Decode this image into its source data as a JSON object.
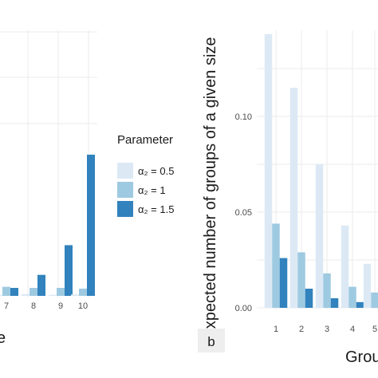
{
  "colors": {
    "series": [
      "#dce9f5",
      "#9ecae1",
      "#3182bd"
    ],
    "grid": "#ebebeb",
    "panel_letter_bg": "#eeeeee"
  },
  "legend": {
    "title": "Parameter",
    "labels": [
      "α₂ = 0.5",
      "α₂ = 1",
      "α₂ = 1.5"
    ]
  },
  "panel_b_label": "b",
  "left_axis_title_fragment": "e",
  "right_x_title_fragment": "Grou",
  "chart_data": [
    {
      "type": "bar",
      "panel": "a",
      "categories": [
        "7",
        "8",
        "9",
        "10"
      ],
      "series": [
        {
          "name": "α₂ = 0.5",
          "values": [
            0.003,
            0.005,
            0.003,
            0.004
          ]
        },
        {
          "name": "α₂ = 1",
          "values": [
            0.025,
            0.022,
            0.022,
            0.02
          ]
        },
        {
          "name": "α₂ = 1.5",
          "values": [
            0.022,
            0.058,
            0.14,
            0.39
          ]
        }
      ]
    },
    {
      "type": "bar",
      "panel": "b",
      "ylabel": "Expected number of groups of a given size",
      "yticks": [
        "0.00",
        "0.05",
        "0.10"
      ],
      "ylim": [
        0,
        0.148
      ],
      "categories": [
        "1",
        "2",
        "3",
        "4",
        "5"
      ],
      "series": [
        {
          "name": "α₂ = 0.5",
          "values": [
            0.143,
            0.115,
            0.075,
            0.043,
            0.023
          ]
        },
        {
          "name": "α₂ = 1",
          "values": [
            0.044,
            0.029,
            0.018,
            0.011,
            0.008
          ]
        },
        {
          "name": "α₂ = 1.5",
          "values": [
            0.026,
            0.01,
            0.005,
            0.003,
            0.002
          ]
        }
      ]
    }
  ]
}
